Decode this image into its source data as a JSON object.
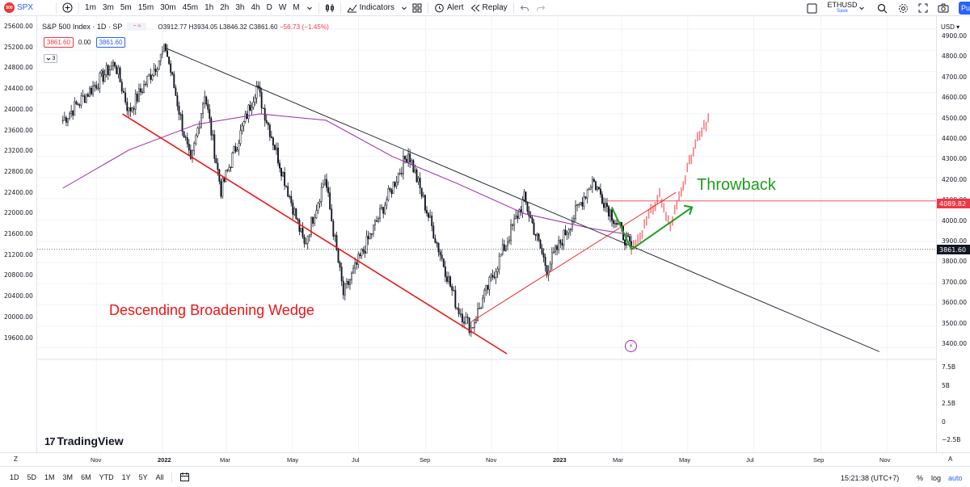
{
  "toolbar": {
    "symbol": "SPX",
    "symbol_badge": "500",
    "intervals": [
      "1m",
      "3m",
      "5m",
      "15m",
      "30m",
      "45m",
      "1h",
      "2h",
      "3h",
      "4h",
      "D",
      "W",
      "M"
    ],
    "active_interval": "D",
    "indicators_label": "Indicators",
    "alert_label": "Alert",
    "replay_label": "Replay",
    "watch_symbol": "ETHUSD",
    "save_label": "Save",
    "publish_label": "Pu"
  },
  "legend": {
    "title": "S&P 500 Index · 1D · SP",
    "open": "O3912.77",
    "high": "H3934.05",
    "low": "L3846.32",
    "close": "C3861.60",
    "change": "−56.73 (−1.45%)",
    "sell_price": "3861.60",
    "spread": "0.00",
    "buy_price": "3861.60",
    "collapse": "3"
  },
  "left_scale": {
    "ticks": [
      "25600.00",
      "25200.00",
      "24800.00",
      "24400.00",
      "24000.00",
      "23600.00",
      "23200.00",
      "22800.00",
      "22400.00",
      "22000.00",
      "21600.00",
      "21200.00",
      "20800.00",
      "20400.00",
      "20000.00",
      "19600.00"
    ]
  },
  "right_scale": {
    "currency": "USD",
    "ticks": [
      "4900.00",
      "4800.00",
      "4700.00",
      "4600.00",
      "4500.00",
      "4400.00",
      "4300.00",
      "4200.00",
      "4100.00",
      "4000.00",
      "3900.00",
      "3800.00",
      "3700.00",
      "3600.00",
      "3500.00",
      "3400.00"
    ],
    "volume_ticks": [
      "7.5B",
      "5B",
      "2.5B",
      "0",
      "−2.5B"
    ],
    "red_tag": "4089.82",
    "last_symbol": "SPX",
    "last_price": "3861.60"
  },
  "time_axis": {
    "labels": [
      "Nov",
      "2022",
      "Mar",
      "May",
      "Jul",
      "Sep",
      "Nov",
      "2023",
      "Mar",
      "May",
      "Jul",
      "Sep",
      "Nov"
    ],
    "bold_labels": [
      "2022",
      "2023"
    ],
    "left_button": "Z",
    "right_button": "A"
  },
  "bottom_bar": {
    "ranges": [
      "1D",
      "5D",
      "1M",
      "3M",
      "6M",
      "YTD",
      "1Y",
      "5Y",
      "All"
    ],
    "clock": "15:21:38 (UTC+7)",
    "percent": "%",
    "log": "log",
    "auto": "auto"
  },
  "annotations": {
    "wedge": "Descending Broadening Wedge",
    "throwback": "Throwback",
    "brand": "TradingView",
    "brand_mark": "17"
  },
  "colors": {
    "up": "#131722",
    "down": "#131722",
    "projection": "#f77c80",
    "wedge_line": "#f01414",
    "throwback": "#1e9e1e",
    "ma": "#9c27b0",
    "accent": "#2962ff"
  },
  "chart_data": {
    "type": "candlestick",
    "symbol": "SPX",
    "interval": "1D",
    "ylim": [
      3370,
      4930
    ],
    "last_close": 3861.6,
    "resistance_level": 4089.82,
    "swing_points": [
      {
        "date": "2021-10",
        "price": 4470
      },
      {
        "date": "2021-11-18",
        "price": 4740
      },
      {
        "date": "2021-12-01",
        "price": 4510
      },
      {
        "date": "2022-01-04",
        "price": 4810
      },
      {
        "date": "2022-01-27",
        "price": 4260
      },
      {
        "date": "2022-02-09",
        "price": 4600
      },
      {
        "date": "2022-02-24",
        "price": 4140
      },
      {
        "date": "2022-03-29",
        "price": 4630
      },
      {
        "date": "2022-05-12",
        "price": 3880
      },
      {
        "date": "2022-05-31",
        "price": 4200
      },
      {
        "date": "2022-06-17",
        "price": 3650
      },
      {
        "date": "2022-08-16",
        "price": 4320
      },
      {
        "date": "2022-09-30",
        "price": 3590
      },
      {
        "date": "2022-10-13",
        "price": 3490
      },
      {
        "date": "2022-12-01",
        "price": 4100
      },
      {
        "date": "2022-12-22",
        "price": 3770
      },
      {
        "date": "2023-02-02",
        "price": 4190
      },
      {
        "date": "2023-03-10",
        "price": 3861
      }
    ],
    "projection": [
      {
        "date": "2023-03-20",
        "price": 3950
      },
      {
        "date": "2023-04-05",
        "price": 4120
      },
      {
        "date": "2023-04-15",
        "price": 3960
      },
      {
        "date": "2023-04-25",
        "price": 4150
      },
      {
        "date": "2023-05-10",
        "price": 4380
      },
      {
        "date": "2023-05-22",
        "price": 4480
      }
    ],
    "trendlines": [
      {
        "name": "Descending Broadening Wedge lower",
        "from": {
          "date": "2021-11-25",
          "price": 4500
        },
        "to": {
          "date": "2022-11-15",
          "price": 3370
        }
      },
      {
        "name": "Descending resistance",
        "from": {
          "date": "2022-01-04",
          "price": 4810
        },
        "to": {
          "date": "2023-10-25",
          "price": 3380
        }
      },
      {
        "name": "Rising support",
        "from": {
          "date": "2022-10-13",
          "price": 3520
        },
        "to": {
          "date": "2023-04-20",
          "price": 4130
        }
      },
      {
        "name": "Throwback up",
        "from": {
          "date": "2023-03-10",
          "price": 3861
        },
        "to": {
          "date": "2023-05-05",
          "price": 4060
        }
      },
      {
        "name": "Throwback down",
        "from": {
          "date": "2023-02-20",
          "price": 4060
        },
        "to": {
          "date": "2023-03-10",
          "price": 3861
        }
      }
    ]
  }
}
